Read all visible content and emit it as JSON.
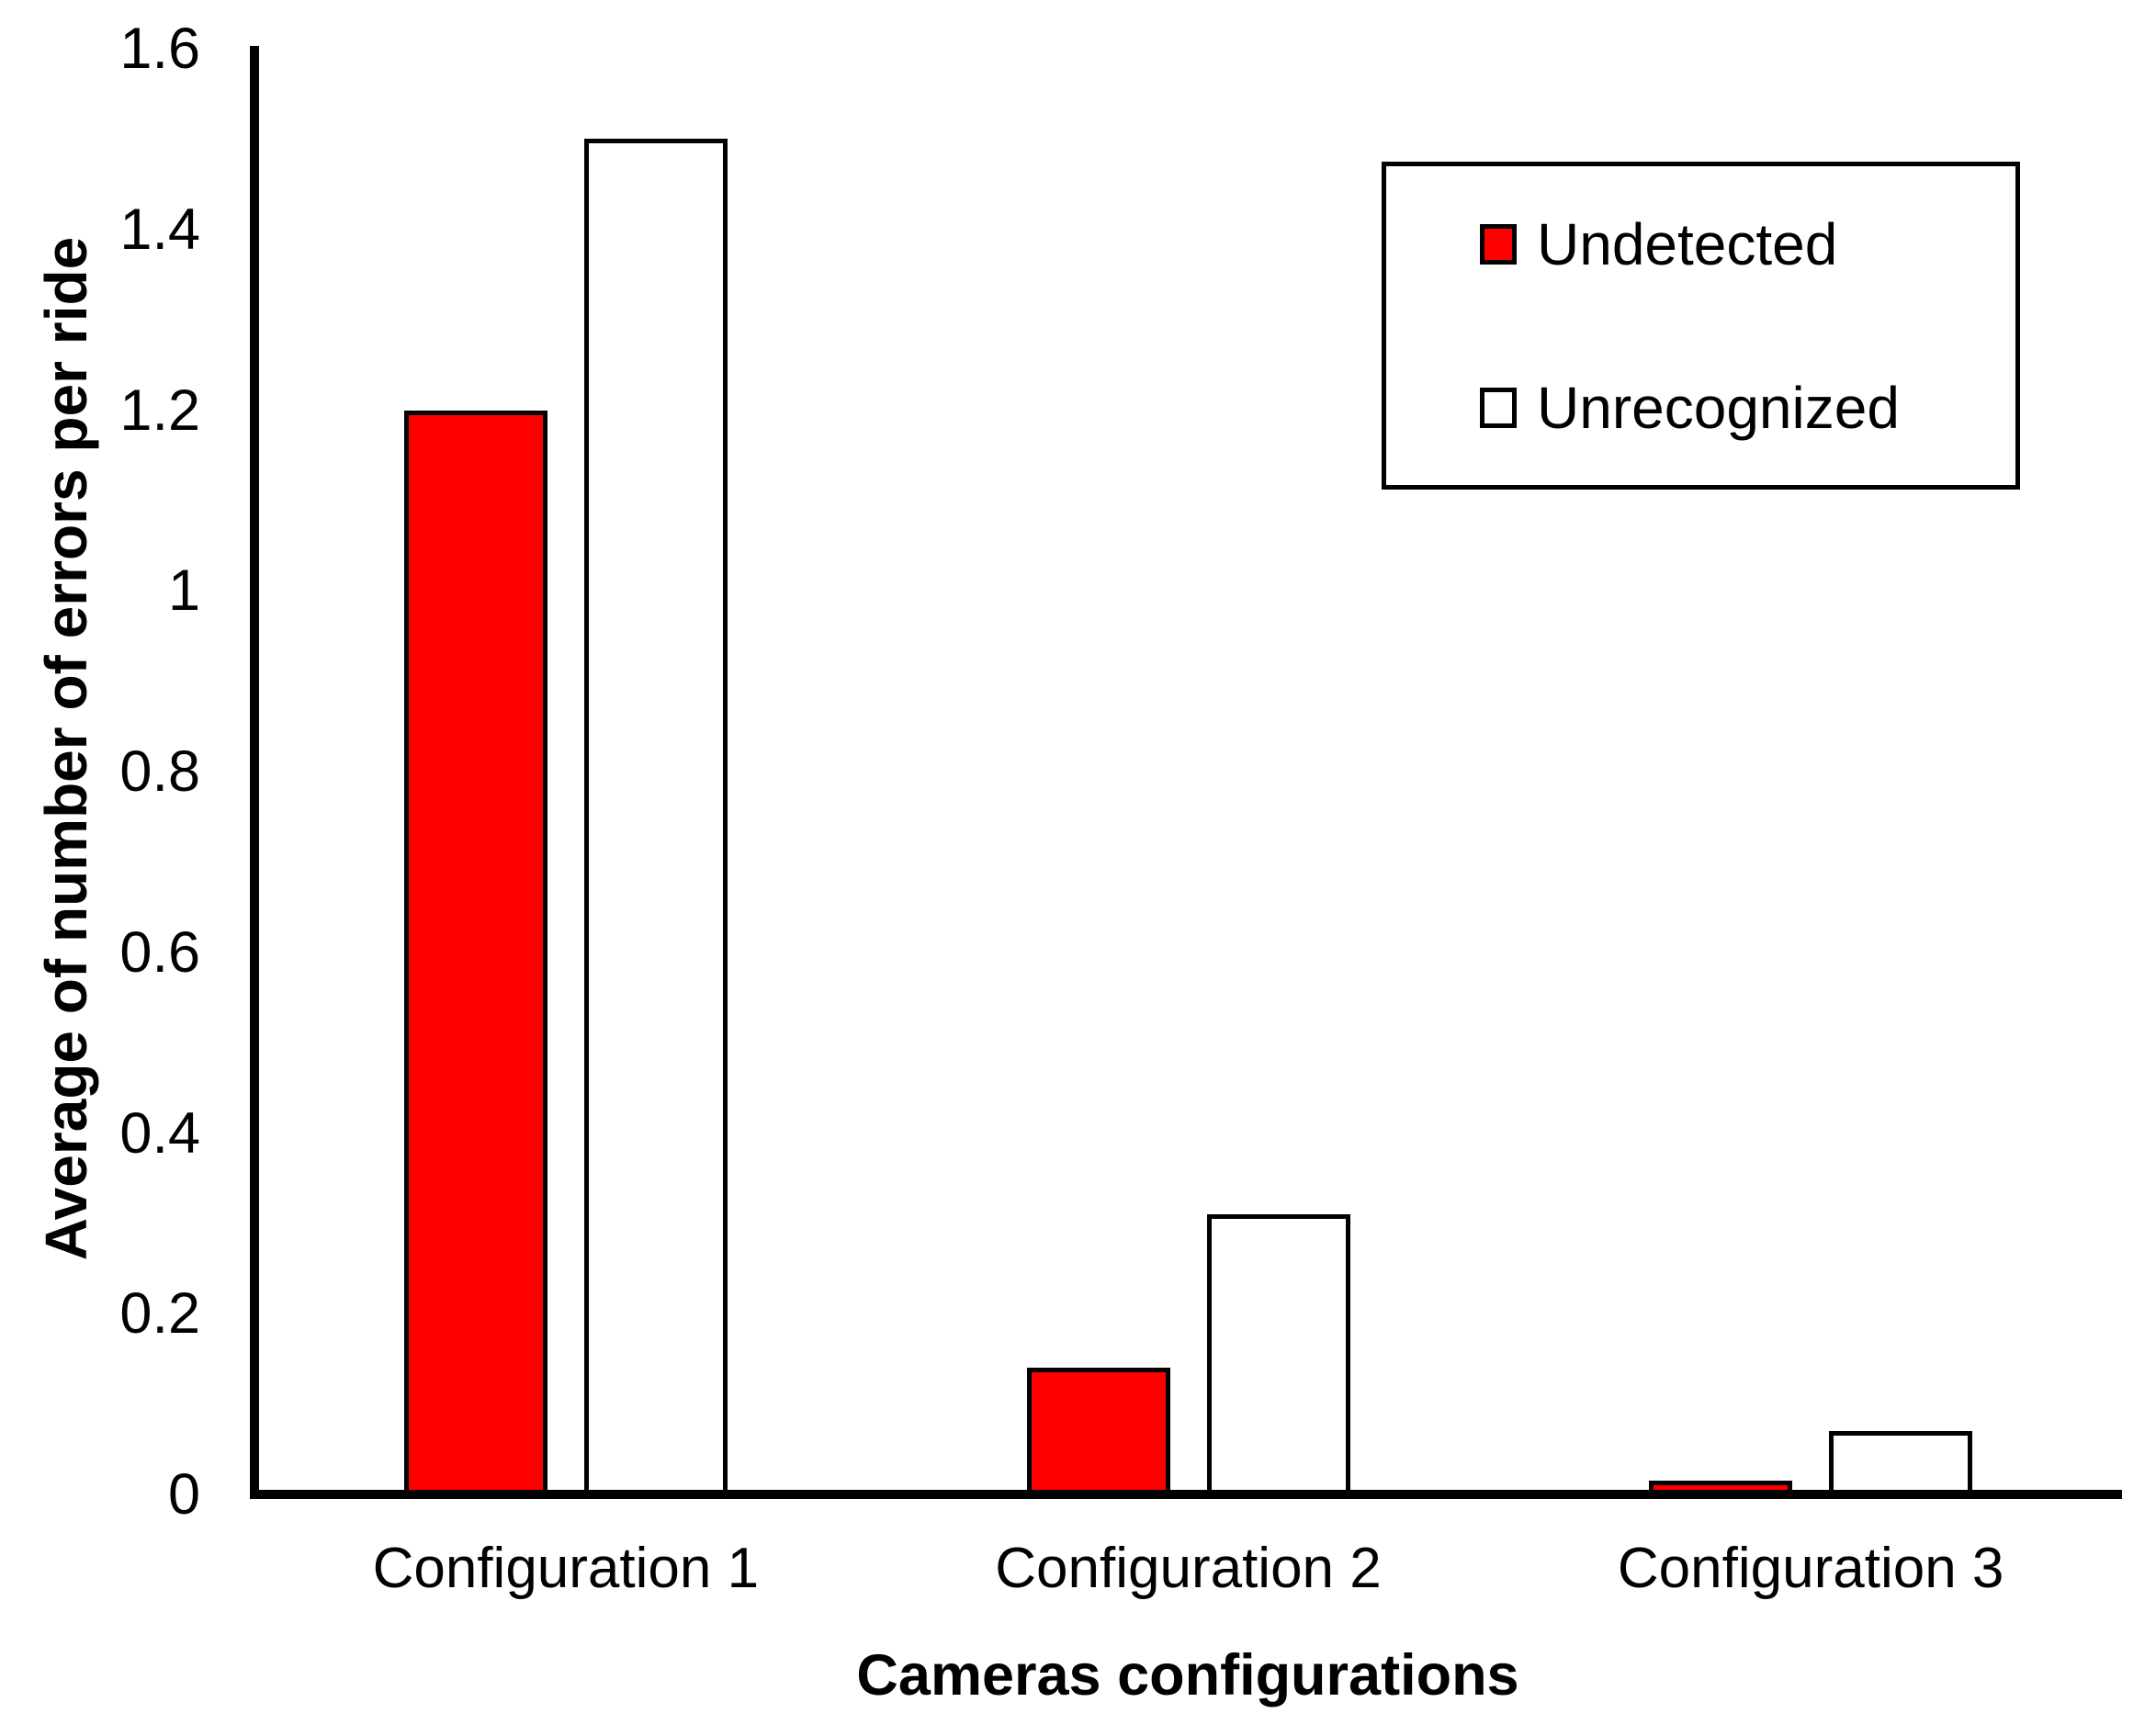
{
  "chart_data": {
    "type": "bar",
    "title": "",
    "categories": [
      "Configuration 1",
      "Configuration 2",
      "Configuration 3"
    ],
    "series": [
      {
        "name": "Undetected",
        "color": "#FF0000",
        "values": [
          1.2,
          0.14,
          0.015
        ]
      },
      {
        "name": "Unrecognized",
        "color": "#FFFFFF",
        "values": [
          1.5,
          0.31,
          0.07
        ]
      }
    ],
    "xlabel": "Cameras configurations",
    "ylabel": "Average of number of errors per ride",
    "ylim": [
      0,
      1.6
    ],
    "ytick_step": 0.2,
    "yticks": [
      "0",
      "0.2",
      "0.4",
      "0.6",
      "0.8",
      "1",
      "1.2",
      "1.4",
      "1.6"
    ],
    "grid": false,
    "legend_position": "top-right",
    "axis_color": "#000000",
    "bar_border_color": "#000000"
  }
}
